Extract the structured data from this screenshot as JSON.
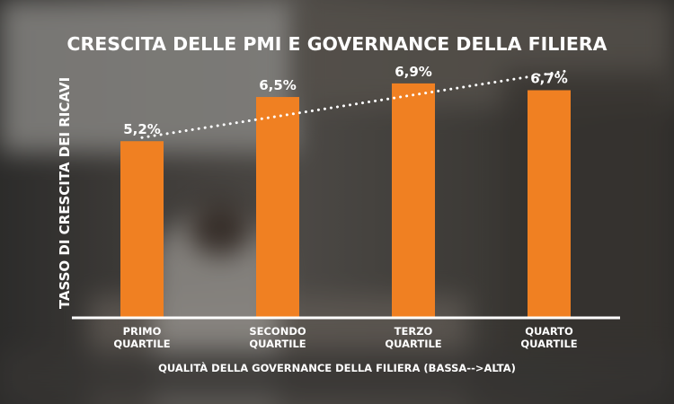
{
  "chart_data": {
    "type": "bar",
    "title": "CRESCITA DELLE PMI E GOVERNANCE DELLA FILIERA",
    "xlabel": "QUALITÀ DELLA GOVERNANCE DELLA FILIERA (BASSA-->ALTA)",
    "ylabel": "TASSO DI CRESCITA DEI RICAVI",
    "categories": [
      [
        "PRIMO",
        "QUARTILE"
      ],
      [
        "SECONDO",
        "QUARTILE"
      ],
      [
        "TERZO",
        "QUARTILE"
      ],
      [
        "QUARTO",
        "QUARTILE"
      ]
    ],
    "values": [
      5.2,
      6.5,
      6.9,
      6.7
    ],
    "data_labels": [
      "5,2%",
      "6,5%",
      "6,9%",
      "6,7%"
    ],
    "ylim": [
      0,
      7.4
    ],
    "trendline": {
      "style": "dotted",
      "color": "#ffffff"
    },
    "bar_color": "#f08022",
    "grid": false,
    "legend": "none"
  }
}
